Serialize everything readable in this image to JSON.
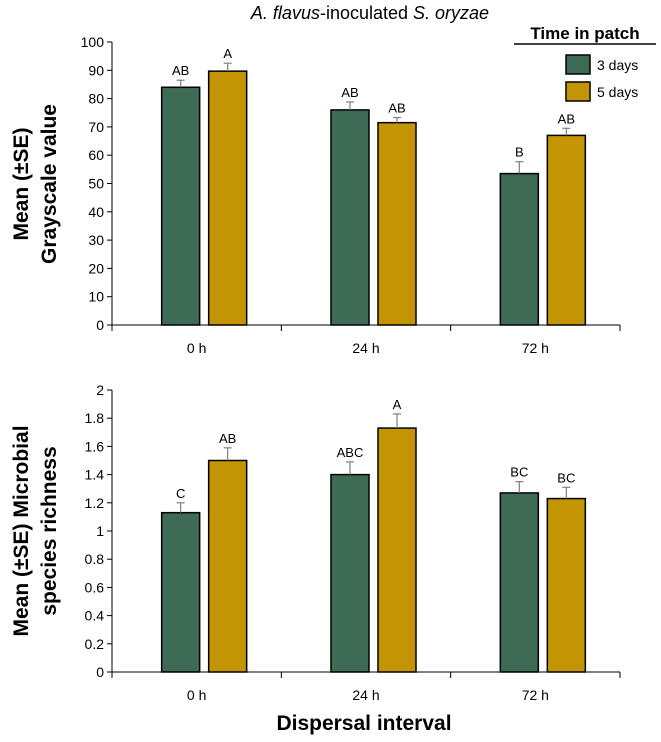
{
  "figure": {
    "xlabel": "Dispersal interval"
  },
  "title": {
    "part1": "A. flavus",
    "part2": "-inoculated ",
    "part3": "S. oryzae"
  },
  "legend": {
    "title": "Time in patch",
    "items": [
      "3 days",
      "5 days"
    ]
  },
  "colors": {
    "series1": "#3d6b56",
    "series2": "#c39503",
    "axis": "#000000",
    "error": "#7f7f7f"
  },
  "chart_data": [
    {
      "type": "bar",
      "title": "A. flavus-inoculated S. oryzae",
      "ylabel_lines": [
        "Mean (±SE)",
        "Grayscale value"
      ],
      "xlabel": "",
      "categories": [
        "0 h",
        "24 h",
        "72 h"
      ],
      "ylim": [
        0,
        100
      ],
      "yticks": [
        0,
        10,
        20,
        30,
        40,
        50,
        60,
        70,
        80,
        90,
        100
      ],
      "ytick_labels": [
        "0",
        "10",
        "20",
        "30",
        "40",
        "50",
        "60",
        "70",
        "80",
        "90",
        "100"
      ],
      "series": [
        {
          "name": "3 days",
          "values": [
            84,
            76,
            53.5
          ],
          "errors": [
            2.5,
            2.8,
            4.2
          ],
          "labels": [
            "AB",
            "AB",
            "B"
          ]
        },
        {
          "name": "5 days",
          "values": [
            89.7,
            71.5,
            67
          ],
          "errors": [
            2.8,
            1.8,
            2.5
          ],
          "labels": [
            "A",
            "AB",
            "AB"
          ]
        }
      ]
    },
    {
      "type": "bar",
      "ylabel_lines": [
        "Mean (±SE) Microbial",
        "species  richness"
      ],
      "xlabel": "Dispersal interval",
      "categories": [
        "0 h",
        "24 h",
        "72 h"
      ],
      "ylim": [
        0,
        2
      ],
      "yticks": [
        0,
        0.2,
        0.4,
        0.6,
        0.8,
        1,
        1.2,
        1.4,
        1.6,
        1.8,
        2
      ],
      "ytick_labels": [
        "0",
        "0.2",
        "0.4",
        "0.6",
        "0.8",
        "1",
        "1.2",
        "1.4",
        "1.6",
        "1.8",
        "2"
      ],
      "series": [
        {
          "name": "3 days",
          "values": [
            1.13,
            1.4,
            1.27
          ],
          "errors": [
            0.07,
            0.09,
            0.08
          ],
          "labels": [
            "C",
            "ABC",
            "BC"
          ]
        },
        {
          "name": "5 days",
          "values": [
            1.5,
            1.73,
            1.23
          ],
          "errors": [
            0.09,
            0.1,
            0.08
          ],
          "labels": [
            "AB",
            "A",
            "BC"
          ]
        }
      ]
    }
  ]
}
